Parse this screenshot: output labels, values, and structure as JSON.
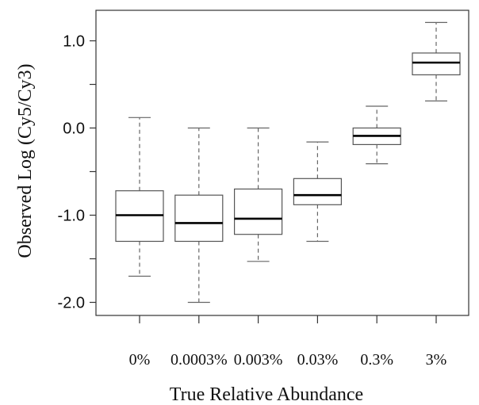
{
  "chart_data": {
    "type": "boxplot",
    "xlabel": "True Relative Abundance",
    "ylabel": "Observed Log (Cy5/Cy3)",
    "ylim": [
      -2.15,
      1.35
    ],
    "yticks": [
      {
        "value": 1.0,
        "label": "1.0"
      },
      {
        "value": 0.5,
        "label": ""
      },
      {
        "value": 0.0,
        "label": "0.0"
      },
      {
        "value": -0.5,
        "label": ""
      },
      {
        "value": -1.0,
        "label": "-1.0"
      },
      {
        "value": -1.5,
        "label": ""
      },
      {
        "value": -2.0,
        "label": "-2.0"
      }
    ],
    "categories": [
      "0%",
      "0.0003%",
      "0.003%",
      "0.03%",
      "0.3%",
      "3%"
    ],
    "boxes": [
      {
        "category": "0%",
        "whisker_low": -1.7,
        "q1": -1.3,
        "median": -1.0,
        "q3": -0.72,
        "whisker_high": 0.12
      },
      {
        "category": "0.0003%",
        "whisker_low": -2.0,
        "q1": -1.3,
        "median": -1.09,
        "q3": -0.77,
        "whisker_high": 0.0
      },
      {
        "category": "0.003%",
        "whisker_low": -1.53,
        "q1": -1.22,
        "median": -1.04,
        "q3": -0.7,
        "whisker_high": 0.0
      },
      {
        "category": "0.03%",
        "whisker_low": -1.3,
        "q1": -0.88,
        "median": -0.77,
        "q3": -0.58,
        "whisker_high": -0.16
      },
      {
        "category": "0.3%",
        "whisker_low": -0.41,
        "q1": -0.19,
        "median": -0.09,
        "q3": 0.0,
        "whisker_high": 0.25
      },
      {
        "category": "3%",
        "whisker_low": 0.31,
        "q1": 0.61,
        "median": 0.75,
        "q3": 0.86,
        "whisker_high": 1.21
      }
    ],
    "grid": false,
    "legend": "none",
    "colors": {
      "box_fill": "#ffffff",
      "box_stroke": "#555555",
      "median": "#000000",
      "whisker": "#666666",
      "axis": "#333333"
    }
  }
}
